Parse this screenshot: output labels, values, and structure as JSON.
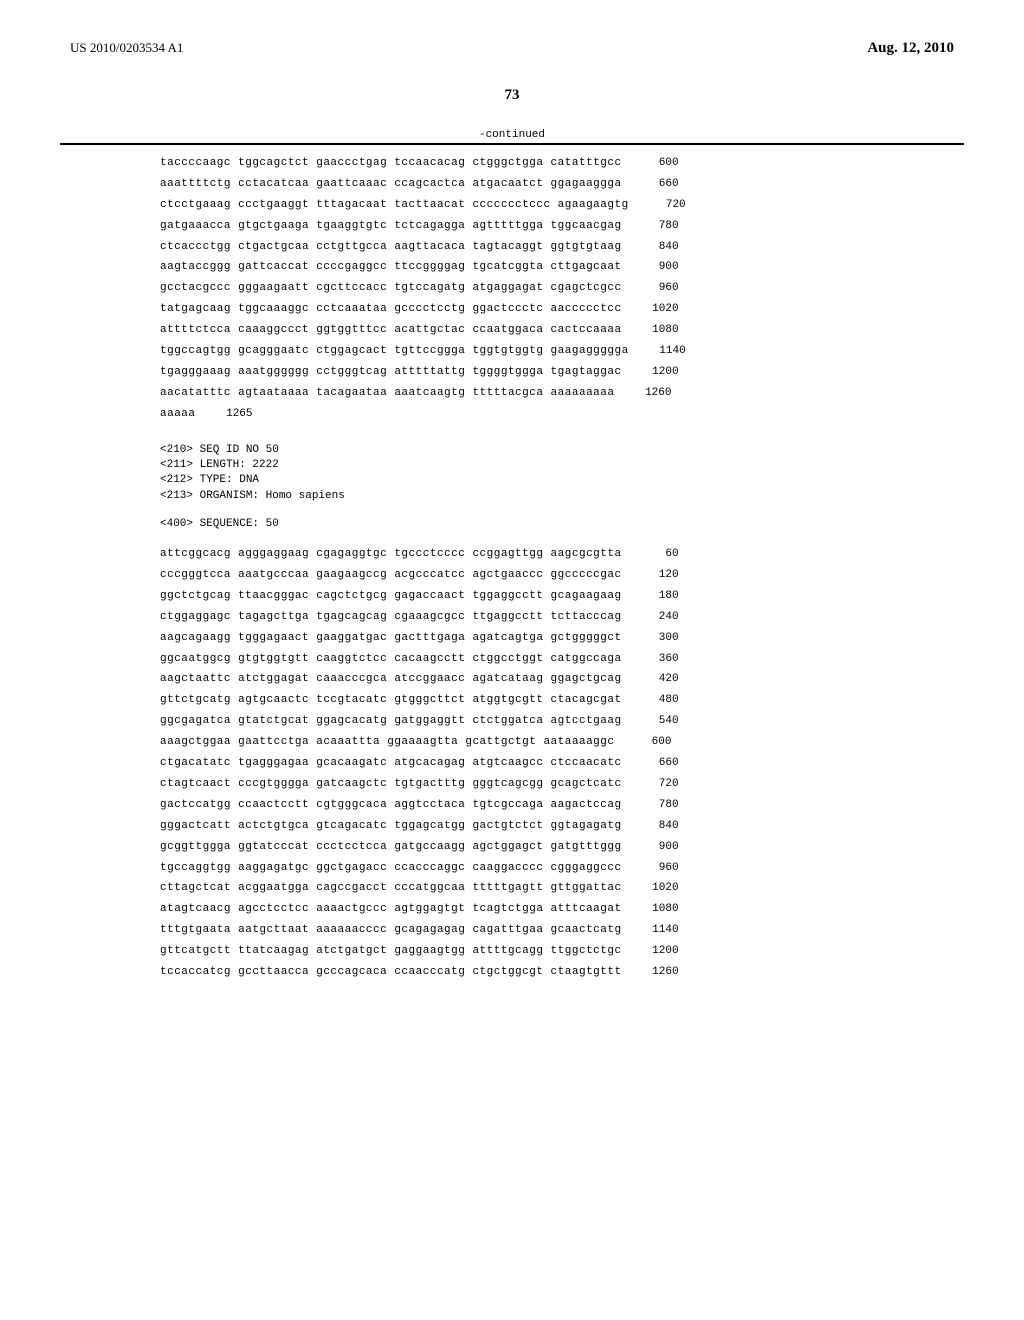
{
  "header": {
    "doc_number": "US 2010/0203534 A1",
    "pub_date": "Aug. 12, 2010"
  },
  "page_number": "73",
  "continued_label": "-continued",
  "seq_block1": {
    "lines": [
      {
        "text": "taccccaagc tggcagctct gaaccctgag tccaacacag ctgggctgga catatttgcc",
        "pos": "600"
      },
      {
        "text": "aaattttctg cctacatcaa gaattcaaac ccagcactca atgacaatct ggagaaggga",
        "pos": "660"
      },
      {
        "text": "ctcctgaaag ccctgaaggt tttagacaat tacttaacat ccccccctccc agaagaagtg",
        "pos": "720"
      },
      {
        "text": "gatgaaacca gtgctgaaga tgaaggtgtc tctcagagga agtttttgga tggcaacgag",
        "pos": "780"
      },
      {
        "text": "ctcaccctgg ctgactgcaa cctgttgcca aagttacaca tagtacaggt ggtgtgtaag",
        "pos": "840"
      },
      {
        "text": "aagtaccggg gattcaccat ccccgaggcc ttccggggag tgcatcggta cttgagcaat",
        "pos": "900"
      },
      {
        "text": "gcctacgccc gggaagaatt cgcttccacc tgtccagatg atgaggagat cgagctcgcc",
        "pos": "960"
      },
      {
        "text": "tatgagcaag tggcaaaggc cctcaaataa gcccctcctg ggactccctc aaccccctcc",
        "pos": "1020"
      },
      {
        "text": "attttctcca caaaggccct ggtggtttcc acattgctac ccaatggaca cactccaaaa",
        "pos": "1080"
      },
      {
        "text": "tggccagtgg gcagggaatc ctggagcact tgttccggga tggtgtggtg gaagaggggga",
        "pos": "1140"
      },
      {
        "text": "tgagggaaag aaatgggggg cctgggtcag atttttattg tggggtggga tgagtaggac",
        "pos": "1200"
      },
      {
        "text": "aacatatttc agtaataaaa tacagaataa aaatcaagtg tttttacgca aaaaaaaaa",
        "pos": "1260"
      },
      {
        "text": "aaaaa",
        "pos": "1265"
      }
    ]
  },
  "metadata": {
    "seq_id": "<210> SEQ ID NO 50",
    "length": "<211> LENGTH: 2222",
    "type": "<212> TYPE: DNA",
    "organism": "<213> ORGANISM: Homo sapiens"
  },
  "sequence_label": "<400> SEQUENCE: 50",
  "seq_block2": {
    "lines": [
      {
        "text": "attcggcacg agggaggaag cgagaggtgc tgccctcccc ccggagttgg aagcgcgtta",
        "pos": "60"
      },
      {
        "text": "cccgggtcca aaatgcccaa gaagaagccg acgcccatcc agctgaaccc ggcccccgac",
        "pos": "120"
      },
      {
        "text": "ggctctgcag ttaacgggac cagctctgcg gagaccaact tggaggcctt gcagaagaag",
        "pos": "180"
      },
      {
        "text": "ctggaggagc tagagcttga tgagcagcag cgaaagcgcc ttgaggcctt tcttacccag",
        "pos": "240"
      },
      {
        "text": "aagcagaagg tgggagaact gaaggatgac gactttgaga agatcagtga gctgggggct",
        "pos": "300"
      },
      {
        "text": "ggcaatggcg gtgtggtgtt caaggtctcc cacaagcctt ctggcctggt catggccaga",
        "pos": "360"
      },
      {
        "text": "aagctaattc atctggagat caaacccgca atccggaacc agatcataag ggagctgcag",
        "pos": "420"
      },
      {
        "text": "gttctgcatg agtgcaactc tccgtacatc gtgggcttct atggtgcgtt ctacagcgat",
        "pos": "480"
      },
      {
        "text": "ggcgagatca gtatctgcat ggagcacatg gatggaggtt ctctggatca agtcctgaag",
        "pos": "540"
      },
      {
        "text": "aaagctggaa gaattcctga acaaattta ggaaaagtta gcattgctgt aataaaaggc",
        "pos": "600"
      },
      {
        "text": "ctgacatatc tgagggagaa gcacaagatc atgcacagag atgtcaagcc ctccaacatc",
        "pos": "660"
      },
      {
        "text": "ctagtcaact cccgtgggga gatcaagctc tgtgactttg gggtcagcgg gcagctcatc",
        "pos": "720"
      },
      {
        "text": "gactccatgg ccaactcctt cgtgggcaca aggtcctaca tgtcgccaga aagactccag",
        "pos": "780"
      },
      {
        "text": "gggactcatt actctgtgca gtcagacatc tggagcatgg gactgtctct ggtagagatg",
        "pos": "840"
      },
      {
        "text": "gcggttggga ggtatcccat ccctcctcca gatgccaagg agctggagct gatgtttggg",
        "pos": "900"
      },
      {
        "text": "tgccaggtgg aaggagatgc ggctgagacc ccacccaggc caaggacccc cgggaggccc",
        "pos": "960"
      },
      {
        "text": "cttagctcat acggaatgga cagccgacct cccatggcaa tttttgagtt gttggattac",
        "pos": "1020"
      },
      {
        "text": "atagtcaacg agcctcctcc aaaactgccc agtggagtgt tcagtctgga atttcaagat",
        "pos": "1080"
      },
      {
        "text": "tttgtgaata aatgcttaat aaaaaacccc gcagagagag cagatttgaa gcaactcatg",
        "pos": "1140"
      },
      {
        "text": "gttcatgctt ttatcaagag atctgatgct gaggaagtgg attttgcagg ttggctctgc",
        "pos": "1200"
      },
      {
        "text": "tccaccatcg gccttaacca gcccagcaca ccaacccatg ctgctggcgt ctaagtgttt",
        "pos": "1260"
      }
    ]
  }
}
